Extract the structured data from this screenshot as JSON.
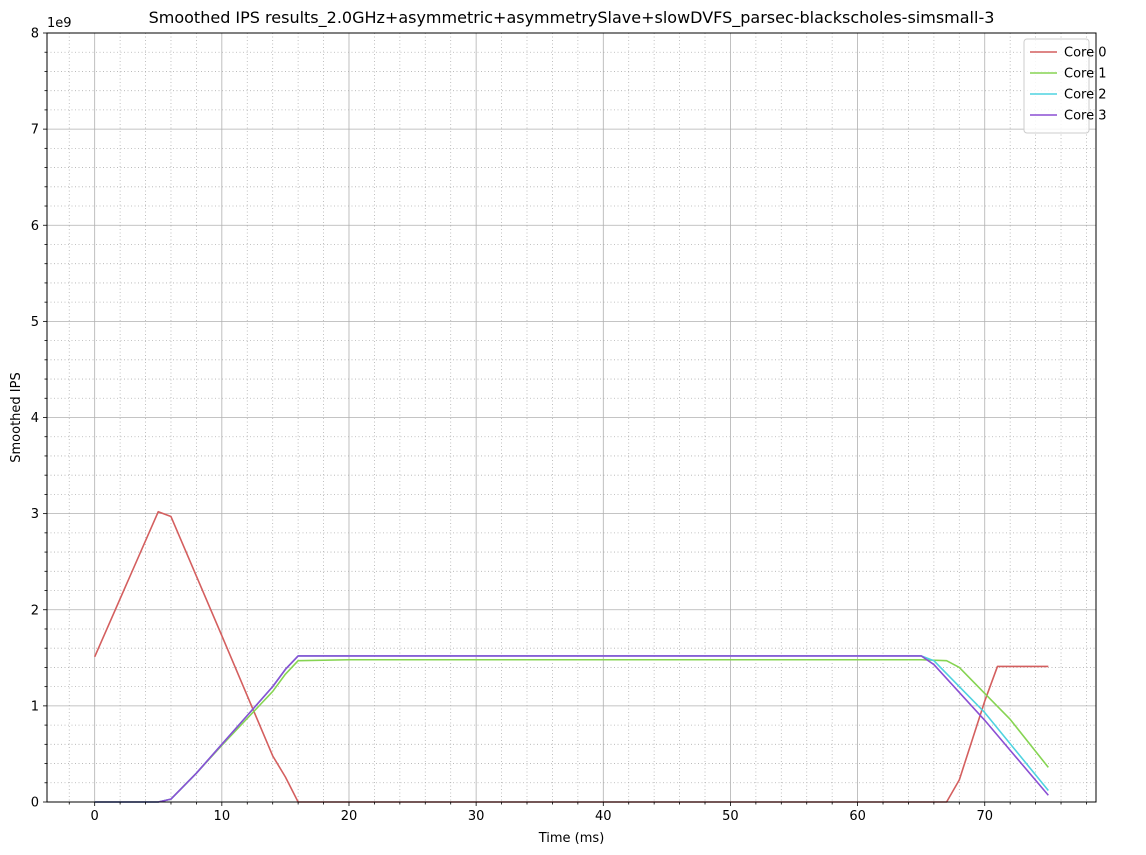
{
  "chart_data": {
    "type": "line",
    "title": "Smoothed IPS results_2.0GHz+asymmetric+asymmetrySlave+slowDVFS_parsec-blackscholes-simsmall-3",
    "xlabel": "Time (ms)",
    "ylabel": "Smoothed IPS",
    "y_offset_label": "1e9",
    "y_scale": 1000000000,
    "xlim": [
      -3.75,
      78.75
    ],
    "ylim": [
      0,
      8
    ],
    "x_major_ticks": [
      0,
      10,
      20,
      30,
      40,
      50,
      60,
      70
    ],
    "x_minor_step": 2,
    "y_major_ticks": [
      0,
      1,
      2,
      3,
      4,
      5,
      6,
      7,
      8
    ],
    "y_minor_step": 0.2,
    "grid": true,
    "legend_position": "top-right",
    "series": [
      {
        "name": "Core 0",
        "color": "#d45f5f",
        "x": [
          0,
          5,
          6,
          10,
          14,
          15,
          16,
          20,
          30,
          40,
          50,
          60,
          65,
          67,
          68,
          70,
          71,
          72,
          75
        ],
        "y": [
          1.51,
          3.02,
          2.97,
          1.73,
          0.48,
          0.26,
          0.0,
          0.0,
          0.0,
          0.0,
          0.0,
          0.0,
          0.0,
          0.0,
          0.23,
          1.05,
          1.41,
          1.41,
          1.41
        ]
      },
      {
        "name": "Core 1",
        "color": "#86d452",
        "x": [
          0,
          5,
          6,
          8,
          10,
          12,
          14,
          15,
          16,
          20,
          30,
          40,
          50,
          60,
          65,
          67,
          68,
          70,
          72,
          75
        ],
        "y": [
          0.0,
          0.0,
          0.03,
          0.3,
          0.59,
          0.87,
          1.15,
          1.33,
          1.47,
          1.48,
          1.48,
          1.48,
          1.48,
          1.48,
          1.48,
          1.47,
          1.4,
          1.13,
          0.86,
          0.36
        ]
      },
      {
        "name": "Core 2",
        "color": "#4fd3e0",
        "x": [
          0,
          5,
          6,
          8,
          10,
          12,
          14,
          15,
          16,
          20,
          30,
          40,
          50,
          60,
          65,
          66,
          70,
          75
        ],
        "y": [
          0.0,
          0.0,
          0.03,
          0.3,
          0.6,
          0.9,
          1.2,
          1.38,
          1.52,
          1.52,
          1.52,
          1.52,
          1.52,
          1.52,
          1.52,
          1.47,
          0.93,
          0.12
        ]
      },
      {
        "name": "Core 3",
        "color": "#8b4fd3",
        "x": [
          0,
          5,
          6,
          8,
          10,
          12,
          14,
          15,
          16,
          20,
          30,
          40,
          50,
          60,
          65,
          66,
          70,
          75
        ],
        "y": [
          0.0,
          0.0,
          0.03,
          0.3,
          0.6,
          0.9,
          1.2,
          1.38,
          1.52,
          1.52,
          1.52,
          1.52,
          1.52,
          1.52,
          1.52,
          1.43,
          0.85,
          0.07
        ]
      }
    ]
  }
}
